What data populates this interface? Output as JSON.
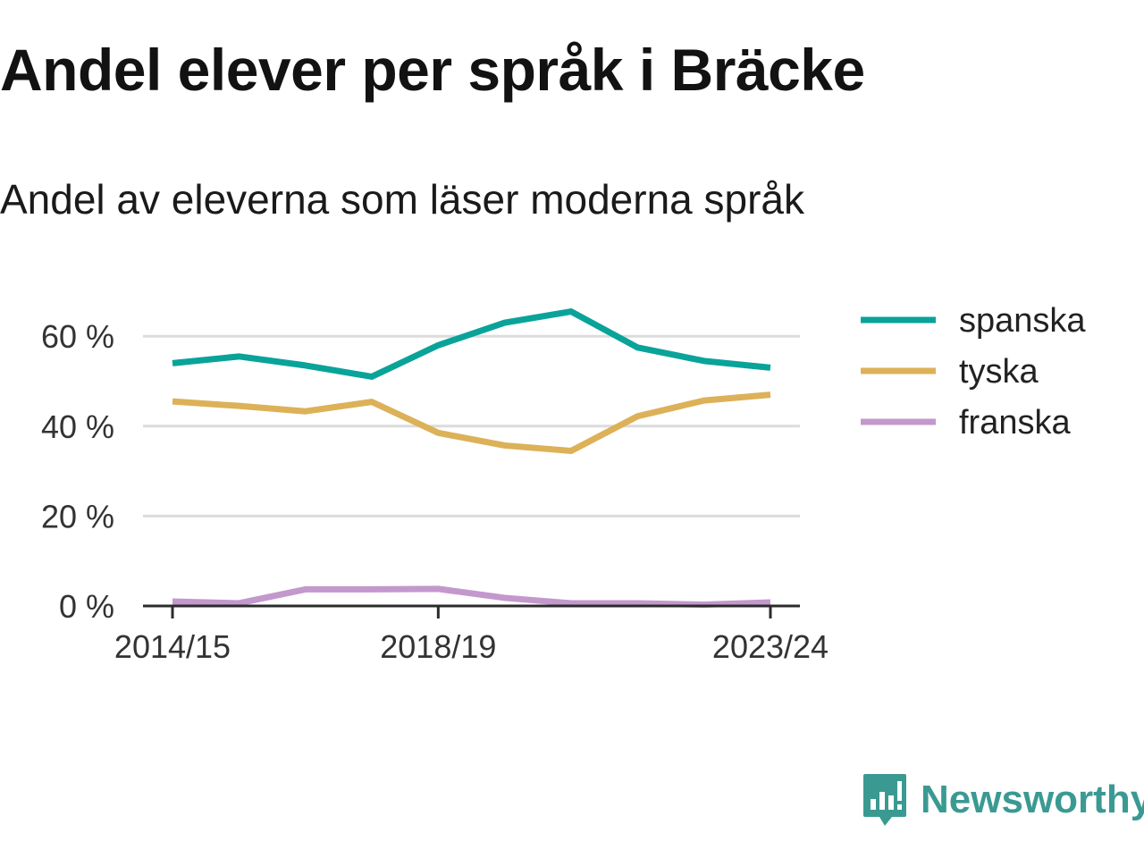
{
  "chart_data": {
    "type": "line",
    "title": "Andel elever per språk i Bräcke",
    "subtitle": "Andel av eleverna som läser moderna språk",
    "x": [
      "2014/15",
      "2015/16",
      "2016/17",
      "2017/18",
      "2018/19",
      "2019/20",
      "2020/21",
      "2021/22",
      "2022/23",
      "2023/24"
    ],
    "x_tick_labels": [
      "2014/15",
      "2018/19",
      "2023/24"
    ],
    "y_ticks": [
      0,
      20,
      40,
      60
    ],
    "y_tick_labels": [
      "0 %",
      "20 %",
      "40 %",
      "60 %"
    ],
    "ylim": [
      0,
      70
    ],
    "grid": true,
    "legend_position": "right",
    "series": [
      {
        "name": "spanska",
        "color": "#0aa39a",
        "values": [
          54,
          55.5,
          53.5,
          51,
          58,
          63,
          65.5,
          57.5,
          54.5,
          53
        ]
      },
      {
        "name": "tyska",
        "color": "#dcb158",
        "values": [
          45.5,
          44.5,
          43.3,
          45.4,
          38.5,
          35.7,
          34.5,
          42.2,
          45.7,
          47
        ]
      },
      {
        "name": "franska",
        "color": "#c398cc",
        "values": [
          1.0,
          0.6,
          3.7,
          3.7,
          3.8,
          1.8,
          0.6,
          0.6,
          0.3,
          0.8
        ]
      }
    ]
  },
  "brand": {
    "name": "Newsworthy",
    "logo_icon": "bar-chart-speech-bubble-icon",
    "color": "#3a9a92"
  }
}
